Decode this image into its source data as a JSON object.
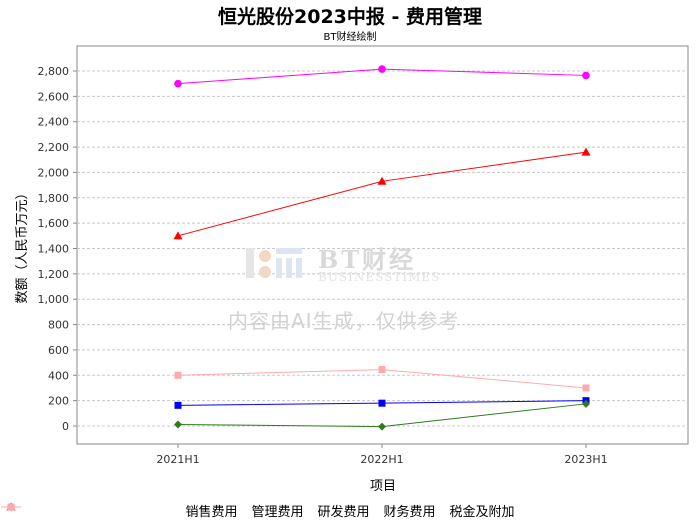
{
  "chart_data": {
    "type": "line",
    "title": "恒光股份2023中报 - 费用管理",
    "subtitle": "BT财经绘制",
    "xlabel": "项目",
    "ylabel": "数额（人民币万元）",
    "categories": [
      "2021H1",
      "2022H1",
      "2023H1"
    ],
    "ylim": [
      -150,
      3000
    ],
    "yticks": [
      0,
      200,
      400,
      600,
      800,
      1000,
      1200,
      1400,
      1600,
      1800,
      2000,
      2200,
      2400,
      2600,
      2800
    ],
    "ytick_labels": [
      "0",
      "200",
      "400",
      "600",
      "800",
      "1,000",
      "1,200",
      "1,400",
      "1,600",
      "1,800",
      "2,000",
      "2,200",
      "2,400",
      "2,600",
      "2,800"
    ],
    "grid": true,
    "legend_position": "bottom",
    "series": [
      {
        "name": "销售费用",
        "values": [
          163,
          180,
          200
        ],
        "color": "#0000ff",
        "marker": "square"
      },
      {
        "name": "管理费用",
        "values": [
          2700,
          2815,
          2765
        ],
        "color": "#ff00ff",
        "marker": "circle"
      },
      {
        "name": "研发费用",
        "values": [
          1500,
          1930,
          2160
        ],
        "color": "#ff0000",
        "marker": "triangle"
      },
      {
        "name": "财务费用",
        "values": [
          12,
          -5,
          175
        ],
        "color": "#2e7d1a",
        "marker": "diamond"
      },
      {
        "name": "税金及附加",
        "values": [
          400,
          445,
          300
        ],
        "color": "#ffaaaa",
        "marker": "square"
      }
    ]
  },
  "watermark": {
    "brand": "BT财经",
    "brand_en": "BUSINESSTIMES",
    "notice": "内容由AI生成，仅供参考"
  }
}
